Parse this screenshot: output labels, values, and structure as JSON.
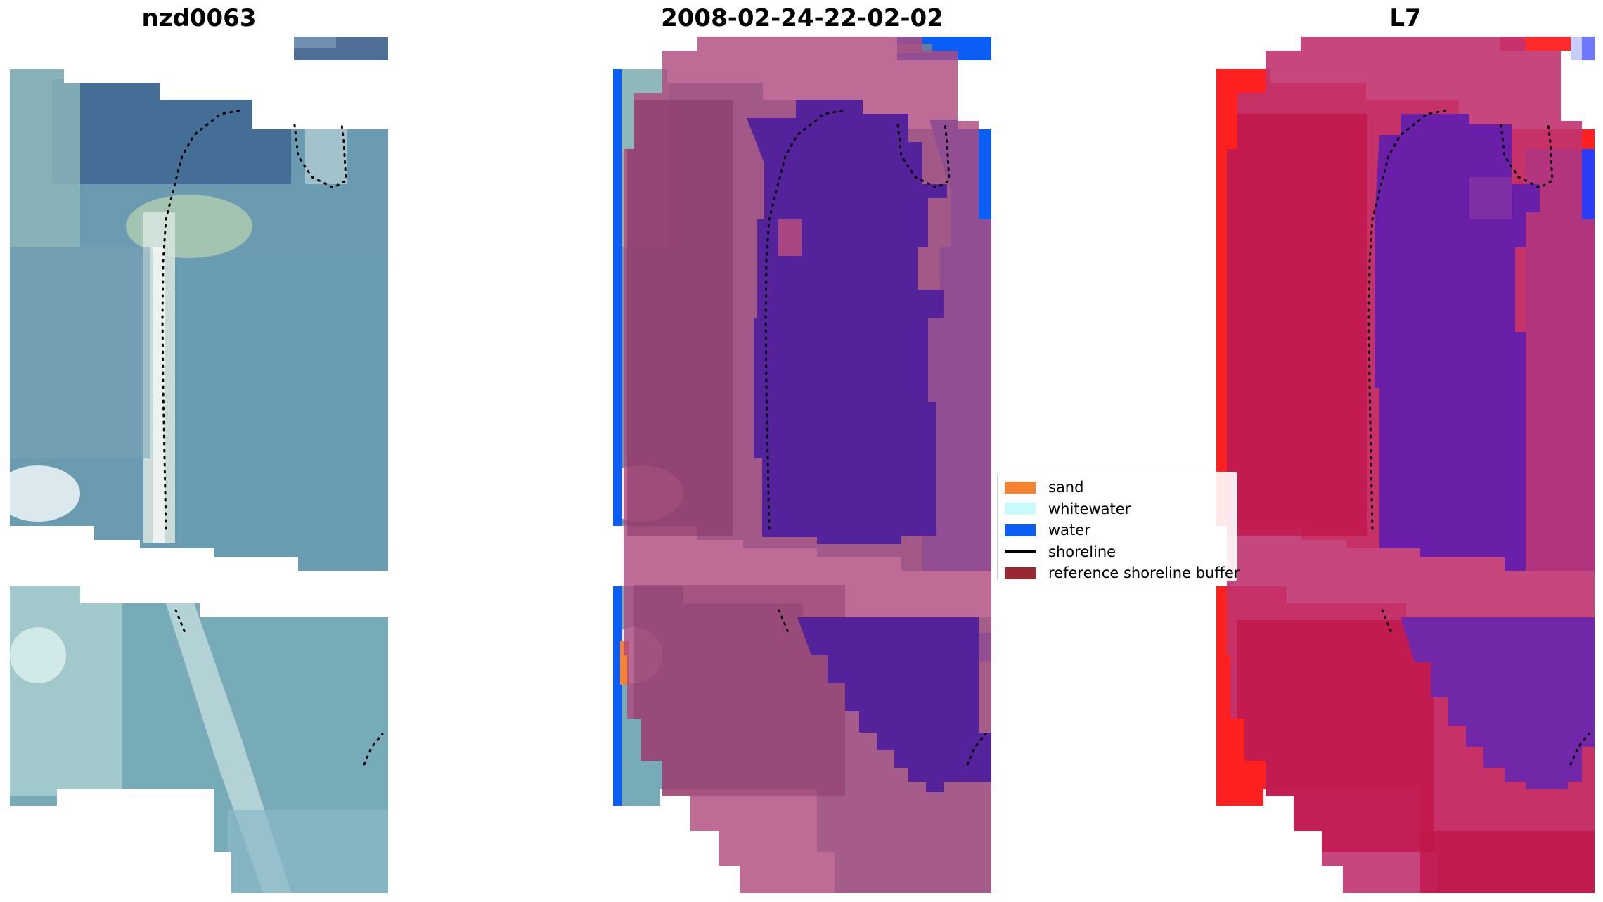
{
  "panels": [
    {
      "title": "nzd0063"
    },
    {
      "title": "2008-02-24-22-02-02"
    },
    {
      "title": "L7"
    }
  ],
  "legend": {
    "items": [
      {
        "label": "sand",
        "color": "#f58231",
        "kind": "patch"
      },
      {
        "label": "whitewater",
        "color": "#c8fafa",
        "kind": "patch"
      },
      {
        "label": "water",
        "color": "#0a5ef5",
        "kind": "patch"
      },
      {
        "label": "shoreline",
        "color": "#000000",
        "kind": "line"
      },
      {
        "label": "reference shoreline buffer",
        "color": "#982832",
        "kind": "patch"
      }
    ]
  }
}
